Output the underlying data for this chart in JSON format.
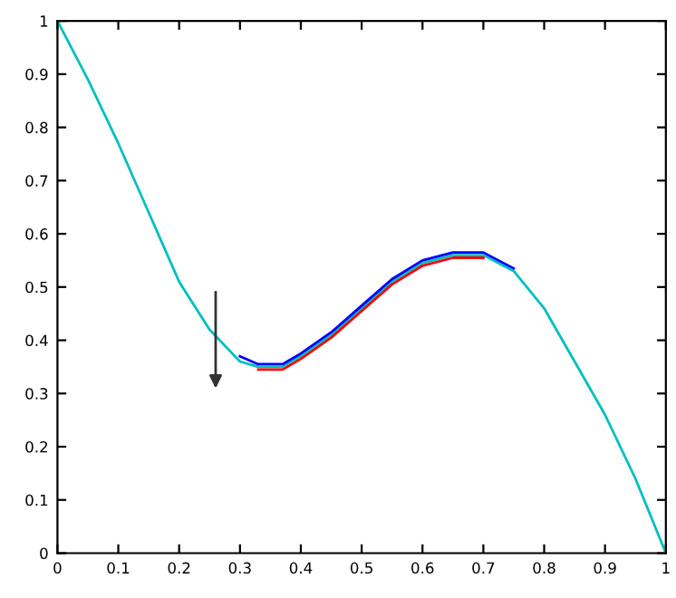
{
  "chart_data": {
    "type": "line",
    "xlim": [
      0,
      1
    ],
    "ylim": [
      0,
      1
    ],
    "xticks": [
      0,
      0.1,
      0.2,
      0.3,
      0.4,
      0.5,
      0.6,
      0.7,
      0.8,
      0.9,
      1
    ],
    "yticks": [
      0,
      0.1,
      0.2,
      0.3,
      0.4,
      0.5,
      0.6,
      0.7,
      0.8,
      0.9,
      1
    ],
    "grid": false,
    "legend": false,
    "marker": "none",
    "line_style": "solid",
    "series": [
      {
        "color": "#00bfbf",
        "x": [
          0,
          0.05,
          0.1,
          0.15,
          0.2,
          0.25,
          0.3,
          0.33,
          0.37,
          0.4,
          0.45,
          0.5,
          0.55,
          0.6,
          0.65,
          0.7,
          0.75,
          0.8,
          0.85,
          0.9,
          0.95,
          1
        ],
        "values": [
          1,
          0.89,
          0.77,
          0.64,
          0.51,
          0.42,
          0.36,
          0.35,
          0.35,
          0.37,
          0.41,
          0.46,
          0.51,
          0.545,
          0.56,
          0.56,
          0.53,
          0.46,
          0.36,
          0.26,
          0.14,
          0
        ]
      },
      {
        "color": "#ff0000",
        "x": [
          0.33,
          0.37,
          0.4,
          0.45,
          0.5,
          0.55,
          0.6,
          0.65,
          0.7
        ],
        "values": [
          0.345,
          0.345,
          0.365,
          0.405,
          0.455,
          0.505,
          0.54,
          0.555,
          0.555
        ]
      },
      {
        "color": "#0000ff",
        "x": [
          0.3,
          0.33,
          0.37,
          0.4,
          0.45,
          0.5,
          0.55,
          0.6,
          0.65,
          0.7,
          0.75
        ],
        "values": [
          0.37,
          0.355,
          0.355,
          0.375,
          0.415,
          0.465,
          0.515,
          0.55,
          0.565,
          0.565,
          0.535
        ]
      }
    ]
  }
}
